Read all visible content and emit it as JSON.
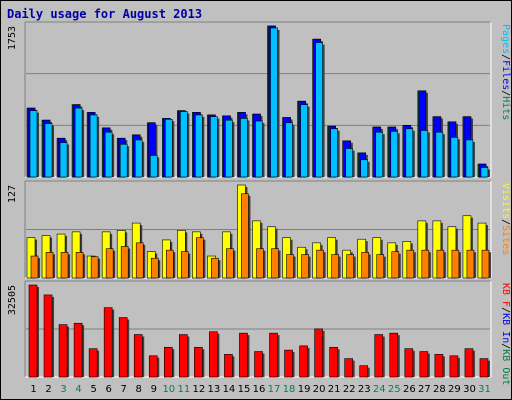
{
  "title": "Daily usage for August 2013",
  "colors": {
    "hits": "#00805c",
    "files": "#0000ff",
    "pages": "#00c0ff",
    "visits": "#ffff00",
    "sites": "#ff8000",
    "kb_f": "#ff0000",
    "kb_in": "#0000ff",
    "kb_out": "#008040",
    "weekday_label": "#000000",
    "weekend_label": "#00805c"
  },
  "chart_data": [
    {
      "type": "bar",
      "categories": [
        "1",
        "2",
        "3",
        "4",
        "5",
        "6",
        "7",
        "8",
        "9",
        "10",
        "11",
        "12",
        "13",
        "14",
        "15",
        "16",
        "17",
        "18",
        "19",
        "20",
        "21",
        "22",
        "23",
        "24",
        "25",
        "26",
        "27",
        "28",
        "29",
        "30",
        "31"
      ],
      "weekend_days": [
        "3",
        "4",
        "10",
        "11",
        "17",
        "18",
        "24",
        "25",
        "31"
      ],
      "ylim": [
        0,
        1753
      ],
      "y_tick_label": "1753",
      "legend": [
        "Pages",
        "/",
        "Files",
        "/",
        "Hits"
      ],
      "series": [
        {
          "name": "Hits",
          "values": [
            800,
            660,
            450,
            840,
            750,
            570,
            450,
            490,
            630,
            680,
            770,
            750,
            720,
            710,
            750,
            730,
            1753,
            690,
            880,
            1600,
            590,
            420,
            280,
            580,
            580,
            600,
            1000,
            700,
            640,
            700,
            150
          ]
        },
        {
          "name": "Files",
          "values": [
            800,
            660,
            450,
            840,
            750,
            570,
            450,
            490,
            630,
            680,
            770,
            750,
            720,
            710,
            750,
            730,
            1753,
            690,
            880,
            1600,
            590,
            420,
            280,
            580,
            580,
            600,
            1000,
            700,
            640,
            700,
            150
          ]
        },
        {
          "name": "Pages",
          "values": [
            770,
            620,
            400,
            800,
            720,
            520,
            380,
            430,
            250,
            670,
            760,
            720,
            700,
            660,
            680,
            650,
            1730,
            630,
            840,
            1560,
            560,
            330,
            200,
            520,
            530,
            560,
            540,
            520,
            460,
            430,
            110
          ]
        }
      ]
    },
    {
      "type": "bar",
      "categories": [
        "1",
        "2",
        "3",
        "4",
        "5",
        "6",
        "7",
        "8",
        "9",
        "10",
        "11",
        "12",
        "13",
        "14",
        "15",
        "16",
        "17",
        "18",
        "19",
        "20",
        "21",
        "22",
        "23",
        "24",
        "25",
        "26",
        "27",
        "28",
        "29",
        "30",
        "31"
      ],
      "ylim": [
        0,
        127
      ],
      "y_tick_label": "127",
      "legend": [
        "Visits",
        "/",
        "Sites"
      ],
      "series": [
        {
          "name": "Visits",
          "values": [
            55,
            58,
            60,
            63,
            30,
            63,
            65,
            75,
            36,
            52,
            65,
            63,
            30,
            63,
            127,
            78,
            70,
            55,
            42,
            48,
            55,
            38,
            53,
            55,
            48,
            50,
            78,
            78,
            70,
            85,
            75
          ]
        },
        {
          "name": "Sites",
          "values": [
            30,
            35,
            35,
            35,
            29,
            40,
            43,
            48,
            27,
            38,
            36,
            55,
            27,
            40,
            115,
            40,
            40,
            32,
            32,
            38,
            32,
            32,
            35,
            32,
            36,
            38,
            38,
            38,
            38,
            38,
            38
          ]
        }
      ]
    },
    {
      "type": "bar",
      "categories": [
        "1",
        "2",
        "3",
        "4",
        "5",
        "6",
        "7",
        "8",
        "9",
        "10",
        "11",
        "12",
        "13",
        "14",
        "15",
        "16",
        "17",
        "18",
        "19",
        "20",
        "21",
        "22",
        "23",
        "24",
        "25",
        "26",
        "27",
        "28",
        "29",
        "30",
        "31"
      ],
      "ylim": [
        0,
        32505
      ],
      "y_tick_label": "32505",
      "legend": [
        "KB F",
        "/",
        "KB In",
        "/",
        "KB Out"
      ],
      "series": [
        {
          "name": "KB F",
          "values": [
            32505,
            29000,
            18500,
            19000,
            10000,
            24500,
            21000,
            15000,
            7500,
            10500,
            15000,
            10500,
            16000,
            8000,
            15500,
            9000,
            15500,
            9500,
            11000,
            17000,
            10500,
            6500,
            4000,
            15000,
            15500,
            10000,
            9000,
            8000,
            7500,
            10000,
            6500
          ]
        }
      ]
    }
  ]
}
